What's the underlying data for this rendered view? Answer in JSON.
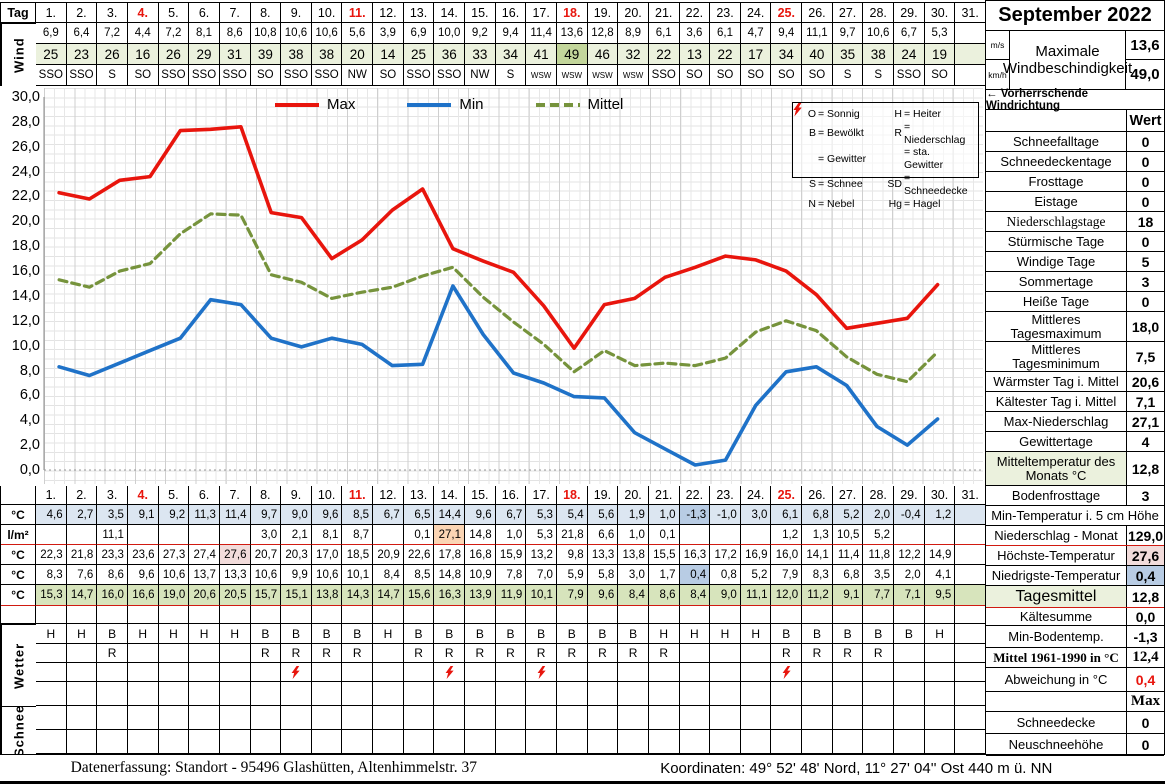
{
  "month_title": "September 2022",
  "top": {
    "tag_label": "Tag",
    "wind_label": "Wind",
    "days": [
      "1.",
      "2.",
      "3.",
      "4.",
      "5.",
      "6.",
      "7.",
      "8.",
      "9.",
      "10.",
      "11.",
      "12.",
      "13.",
      "14.",
      "15.",
      "16.",
      "17.",
      "18.",
      "19.",
      "20.",
      "21.",
      "22.",
      "23.",
      "24.",
      "25.",
      "26.",
      "27.",
      "28.",
      "29.",
      "30.",
      "31."
    ],
    "sundays": [
      4,
      11,
      18,
      25
    ],
    "wind_ms": [
      6.9,
      6.4,
      7.2,
      4.4,
      7.2,
      8.1,
      8.6,
      10.8,
      10.6,
      10.6,
      5.6,
      3.9,
      6.9,
      10.0,
      9.2,
      9.4,
      11.4,
      13.6,
      12.8,
      8.9,
      6.1,
      3.6,
      6.1,
      4.7,
      9.4,
      11.1,
      9.7,
      10.6,
      6.7,
      5.3,
      null
    ],
    "wind_kmh": [
      25,
      23,
      26,
      16,
      26,
      29,
      31,
      39,
      38,
      38,
      20,
      14,
      25,
      36,
      33,
      34,
      41,
      49,
      46,
      32,
      22,
      13,
      22,
      17,
      34,
      40,
      35,
      38,
      24,
      19,
      null
    ],
    "wind_dir": [
      "SSO",
      "SSO",
      "S",
      "SO",
      "SSO",
      "SSO",
      "SSO",
      "SO",
      "SSO",
      "SSO",
      "NW",
      "SO",
      "SSO",
      "SSO",
      "NW",
      "S",
      "WSW",
      "WSW",
      "WSW",
      "WSW",
      "SSO",
      "SO",
      "SO",
      "SO",
      "SO",
      "SO",
      "S",
      "S",
      "SSO",
      "SO",
      ""
    ]
  },
  "chart_data": {
    "type": "line",
    "title": "",
    "xlabel": "Tag",
    "ylabel": "",
    "x": [
      1,
      2,
      3,
      4,
      5,
      6,
      7,
      8,
      9,
      10,
      11,
      12,
      13,
      14,
      15,
      16,
      17,
      18,
      19,
      20,
      21,
      22,
      23,
      24,
      25,
      26,
      27,
      28,
      29,
      30,
      31
    ],
    "ylim": [
      0,
      30
    ],
    "ytick_step": 2,
    "grid": true,
    "legend_position": "top",
    "series": [
      {
        "name": "Max",
        "color": "#e8150d",
        "style": "solid",
        "values": [
          22.3,
          21.8,
          23.3,
          23.6,
          27.3,
          27.4,
          27.6,
          20.7,
          20.3,
          17.0,
          18.5,
          20.9,
          22.6,
          17.8,
          16.8,
          15.9,
          13.2,
          9.8,
          13.3,
          13.8,
          15.5,
          16.3,
          17.2,
          16.9,
          16.0,
          14.1,
          11.4,
          11.8,
          12.2,
          14.9,
          null
        ]
      },
      {
        "name": "Min",
        "color": "#1f72c8",
        "style": "solid",
        "values": [
          8.3,
          7.6,
          8.6,
          9.6,
          10.6,
          13.7,
          13.3,
          10.6,
          9.9,
          10.6,
          10.1,
          8.4,
          8.5,
          14.8,
          10.9,
          7.8,
          7.0,
          5.9,
          5.8,
          3.0,
          1.7,
          0.4,
          0.8,
          5.2,
          7.9,
          8.3,
          6.8,
          3.5,
          2.0,
          4.1,
          null
        ]
      },
      {
        "name": "Mittel",
        "color": "#76933c",
        "style": "dashed",
        "values": [
          15.3,
          14.7,
          16.0,
          16.6,
          19.0,
          20.6,
          20.5,
          15.7,
          15.1,
          13.8,
          14.3,
          14.7,
          15.6,
          16.3,
          13.9,
          11.9,
          10.1,
          7.9,
          9.6,
          8.4,
          8.6,
          8.4,
          9.0,
          11.1,
          12.0,
          11.2,
          9.1,
          7.7,
          7.1,
          9.5,
          null
        ]
      }
    ]
  },
  "symbol_legend": {
    "left": [
      {
        "k": "O",
        "v": "Sonnig"
      },
      {
        "k": "B",
        "v": "Bewölkt"
      },
      {
        "k": "bolt",
        "v": "Gewitter"
      },
      {
        "k": "S",
        "v": "Schnee"
      },
      {
        "k": "N",
        "v": "Nebel"
      }
    ],
    "right": [
      {
        "k": "H",
        "v": "Heiter"
      },
      {
        "k": "R",
        "v": "Niederschlag"
      },
      {
        "k": "boltbolt",
        "v": "sta. Gewitter"
      },
      {
        "k": "SD",
        "v": "Schneedecke"
      },
      {
        "k": "Hg",
        "v": "Hagel"
      }
    ]
  },
  "mid_table": {
    "unit_c": "°C",
    "unit_lm2": "l/m²",
    "min5": [
      4.6,
      2.7,
      3.5,
      9.1,
      9.2,
      11.3,
      11.4,
      9.7,
      9.0,
      9.6,
      8.5,
      6.7,
      6.5,
      14.4,
      9.6,
      6.7,
      5.3,
      5.4,
      5.6,
      1.9,
      1.0,
      -1.3,
      -1.0,
      3.0,
      6.1,
      6.8,
      5.2,
      2.0,
      -0.4,
      1.2,
      null
    ],
    "precip": [
      null,
      null,
      11.1,
      null,
      null,
      null,
      null,
      3.0,
      2.1,
      8.1,
      8.7,
      null,
      0.1,
      27.1,
      14.8,
      1.0,
      5.3,
      21.8,
      6.6,
      1.0,
      0.1,
      null,
      null,
      null,
      1.2,
      1.3,
      10.5,
      5.2,
      null,
      null,
      null
    ],
    "highlights": {
      "kmh_day": 18,
      "min5_day": 22,
      "precip_day": 14,
      "tmax_day": 7,
      "tmin_day": 22
    }
  },
  "wetter": {
    "label": "Wetter",
    "sky": [
      "H",
      "H",
      "B",
      "H",
      "H",
      "H",
      "H",
      "B",
      "B",
      "B",
      "B",
      "H",
      "B",
      "B",
      "B",
      "B",
      "B",
      "B",
      "B",
      "B",
      "H",
      "H",
      "H",
      "H",
      "B",
      "B",
      "B",
      "B",
      "B",
      "H",
      ""
    ],
    "rain_days": [
      3,
      8,
      9,
      10,
      11,
      13,
      14,
      15,
      16,
      17,
      18,
      19,
      20,
      21,
      25,
      26,
      27,
      28
    ],
    "storm_days": [
      9,
      14,
      17,
      25
    ]
  },
  "schnee_label": "Schnee",
  "right_panel": {
    "unit_ms": "m/s",
    "unit_kmh": "km/h",
    "max_wind_label": "Maximale Windbeschindigkeit",
    "max_wind_ms": "13,6",
    "max_wind_kmh": "49,0",
    "wind_note": "←  Vorherrschende Windrichtung",
    "wert_header": "Wert",
    "rows": [
      {
        "label": "Schneefalltage",
        "value": "0"
      },
      {
        "label": "Schneedeckentage",
        "value": "0"
      },
      {
        "label": "Frosttage",
        "value": "0"
      },
      {
        "label": "Eistage",
        "value": "0"
      },
      {
        "label": "Niederschlagstage",
        "value": "18"
      },
      {
        "label": "Stürmische Tage",
        "value": "0"
      },
      {
        "label": "Windige Tage",
        "value": "5"
      },
      {
        "label": "Sommertage",
        "value": "3"
      },
      {
        "label": "Heiße Tage",
        "value": "0"
      },
      {
        "label": "Mittleres\nTagesmaximum",
        "value": "18,0"
      },
      {
        "label": "Mittleres\nTagesminimum",
        "value": "7,5"
      },
      {
        "label": "Wärmster Tag i. Mittel",
        "value": "20,6"
      },
      {
        "label": "Kältester Tag i. Mittel",
        "value": "7,1"
      },
      {
        "label": "Max-Niederschlag",
        "value": "27,1"
      },
      {
        "label": "Gewittertage",
        "value": "4"
      },
      {
        "label": "Mitteltemperatur des\nMonats °C",
        "value": "12,8"
      },
      {
        "label": "Bodenfrosttage",
        "value": "3"
      },
      {
        "label": "Min-Temperatur i. 5 cm Höhe",
        "value": null
      },
      {
        "label": "Niederschlag - Monat",
        "value": "129,0"
      },
      {
        "label": "Höchste-Temperatur",
        "value": "27,6"
      },
      {
        "label": "Niedrigste-Temperatur",
        "value": "0,4"
      },
      {
        "label": "Tagesmittel",
        "value": "12,8"
      },
      {
        "label": "Kältesumme",
        "value": "0,0"
      },
      {
        "label": "Min-Bodentemp.",
        "value": "-1,3"
      },
      {
        "label": "Mittel 1961-1990 in °C",
        "value": "12,4"
      },
      {
        "label": "Abweichung in °C",
        "value": "0,4"
      },
      {
        "label": "",
        "value": "Max"
      },
      {
        "label": "Schneedecke",
        "value": "0"
      },
      {
        "label": "Neuschneehöhe",
        "value": "0"
      }
    ]
  },
  "footer": {
    "left": "Datenerfassung:  Standort -  95496  Glashütten, Altenhimmelstr. 37",
    "right": "Koordinaten:  49° 52' 48' Nord,   11° 27' 04'' Ost   440 m ü. NN"
  }
}
